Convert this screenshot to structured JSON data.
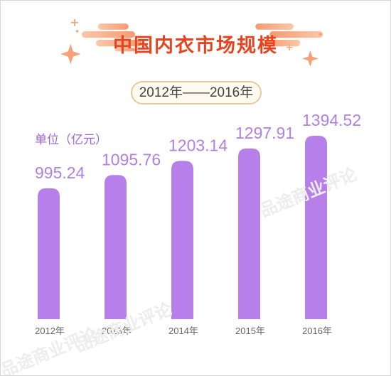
{
  "title": "中国内衣市场规模",
  "subtitle": "2012年——2016年",
  "unit": "单位（亿元）",
  "watermark": "品途商业评论",
  "colors": {
    "bar": "#b67fea",
    "title": "#e8431f",
    "accent": "#f7a07a",
    "value": "#b27fe2"
  },
  "chart_data": {
    "type": "bar",
    "title": "中国内衣市场规模",
    "subtitle": "2012年——2016年",
    "ylabel": "单位（亿元）",
    "categories": [
      "2012年",
      "2013年",
      "2014年",
      "2015年",
      "2016年"
    ],
    "values": [
      995.24,
      1095.76,
      1203.14,
      1297.91,
      1394.52
    ],
    "value_labels": [
      "995.24",
      "1095.76",
      "1203.14",
      "1297.91",
      "1394.52"
    ],
    "grid": false,
    "legend": "none"
  }
}
